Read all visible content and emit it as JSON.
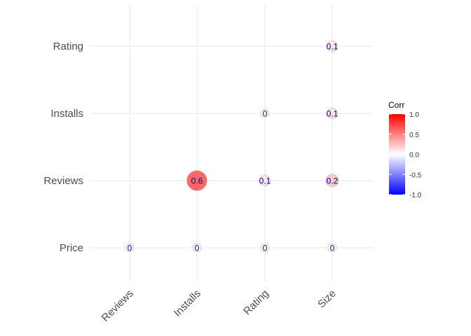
{
  "chart_data": {
    "type": "heatmap",
    "x_categories": [
      "Reviews",
      "Installs",
      "Rating",
      "Size"
    ],
    "y_categories": [
      "Price",
      "Reviews",
      "Installs",
      "Rating"
    ],
    "cells": [
      {
        "x": "Reviews",
        "y": "Price",
        "value": 0.0,
        "label": "0"
      },
      {
        "x": "Installs",
        "y": "Price",
        "value": 0.0,
        "label": "0"
      },
      {
        "x": "Rating",
        "y": "Price",
        "value": 0.0,
        "label": "0"
      },
      {
        "x": "Size",
        "y": "Price",
        "value": 0.0,
        "label": "0"
      },
      {
        "x": "Installs",
        "y": "Reviews",
        "value": 0.6,
        "label": "0.6"
      },
      {
        "x": "Rating",
        "y": "Reviews",
        "value": 0.1,
        "label": "0.1"
      },
      {
        "x": "Size",
        "y": "Reviews",
        "value": 0.2,
        "label": "0.2"
      },
      {
        "x": "Rating",
        "y": "Installs",
        "value": 0.0,
        "label": "0"
      },
      {
        "x": "Size",
        "y": "Installs",
        "value": 0.1,
        "label": "0.1"
      },
      {
        "x": "Size",
        "y": "Rating",
        "value": 0.1,
        "label": "0.1"
      }
    ],
    "legend": {
      "title": "Corr",
      "range": [
        -1,
        1
      ],
      "ticks": [
        "1.0",
        "0.5",
        "0.0",
        "-0.5",
        "-1.0"
      ],
      "placement": "right"
    },
    "colors": {
      "low": "#0000ff",
      "mid": "#ffffff",
      "high": "#ff0000",
      "grid": "#ebebeb",
      "label": "#00008b",
      "outline": "#bdbdbd"
    },
    "grid": true
  }
}
